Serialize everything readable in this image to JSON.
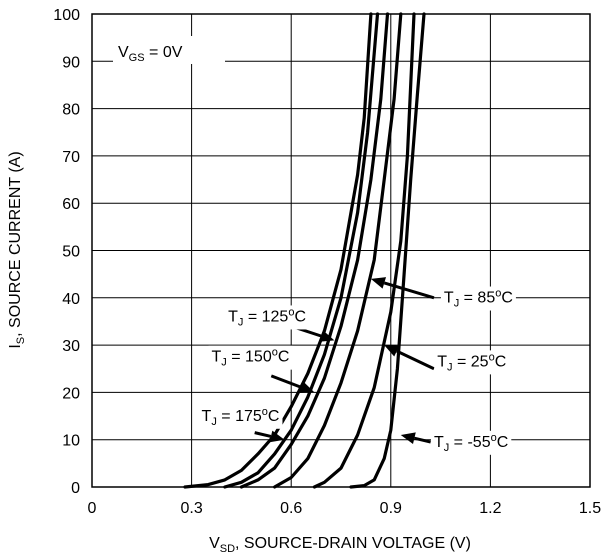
{
  "chart_data": {
    "type": "line",
    "title": "",
    "xlabel": {
      "main": "V",
      "sub": "SD",
      "rest": ", SOURCE-DRAIN VOLTAGE (V)"
    },
    "ylabel": {
      "main": "I",
      "sub": "S",
      "rest": ", SOURCE CURRENT (A)"
    },
    "xlim": [
      0,
      1.5
    ],
    "ylim": [
      0,
      100
    ],
    "x_ticks": [
      "0",
      "0.3",
      "0.6",
      "0.9",
      "1.2",
      "1.5"
    ],
    "y_ticks": [
      "0",
      "10",
      "20",
      "30",
      "40",
      "50",
      "60",
      "70",
      "80",
      "90",
      "100"
    ],
    "x_tick_values": [
      0,
      0.3,
      0.6,
      0.9,
      1.2,
      1.5
    ],
    "y_tick_values": [
      0,
      10,
      20,
      30,
      40,
      50,
      60,
      70,
      80,
      90,
      100
    ],
    "grid": true,
    "condition": {
      "main": "V",
      "sub": "GS",
      "rest": " = 0V"
    },
    "series": [
      {
        "name": "T_J = 175°C",
        "label": {
          "main": "T",
          "sub": "J",
          "mid": " = 175",
          "sup": "o",
          "end": "C"
        },
        "points": [
          [
            0.28,
            0
          ],
          [
            0.35,
            0.5
          ],
          [
            0.4,
            1.5
          ],
          [
            0.45,
            3.5
          ],
          [
            0.5,
            7
          ],
          [
            0.55,
            11
          ],
          [
            0.6,
            17
          ],
          [
            0.65,
            24
          ],
          [
            0.7,
            33
          ],
          [
            0.75,
            46
          ],
          [
            0.8,
            66
          ],
          [
            0.82,
            78
          ],
          [
            0.84,
            100
          ]
        ]
      },
      {
        "name": "T_J = 150°C",
        "label": {
          "main": "T",
          "sub": "J",
          "mid": " = 150",
          "sup": "o",
          "end": "C"
        },
        "points": [
          [
            0.4,
            0
          ],
          [
            0.45,
            1
          ],
          [
            0.5,
            3
          ],
          [
            0.55,
            7
          ],
          [
            0.6,
            12
          ],
          [
            0.65,
            19
          ],
          [
            0.7,
            28
          ],
          [
            0.75,
            40
          ],
          [
            0.8,
            58
          ],
          [
            0.83,
            75
          ],
          [
            0.86,
            100
          ]
        ]
      },
      {
        "name": "T_J = 125°C",
        "label": {
          "main": "T",
          "sub": "J",
          "mid": " = 125",
          "sup": "o",
          "end": "C"
        },
        "points": [
          [
            0.45,
            0
          ],
          [
            0.5,
            1.5
          ],
          [
            0.55,
            4
          ],
          [
            0.6,
            9
          ],
          [
            0.65,
            15
          ],
          [
            0.7,
            23
          ],
          [
            0.75,
            34
          ],
          [
            0.8,
            48
          ],
          [
            0.84,
            65
          ],
          [
            0.87,
            82
          ],
          [
            0.89,
            100
          ]
        ]
      },
      {
        "name": "T_J = 85°C",
        "label": {
          "main": "T",
          "sub": "J",
          "mid": " = 85",
          "sup": "o",
          "end": "C"
        },
        "points": [
          [
            0.55,
            0
          ],
          [
            0.6,
            2
          ],
          [
            0.65,
            6
          ],
          [
            0.7,
            13
          ],
          [
            0.75,
            22
          ],
          [
            0.8,
            33
          ],
          [
            0.85,
            48
          ],
          [
            0.88,
            65
          ],
          [
            0.91,
            82
          ],
          [
            0.93,
            100
          ]
        ]
      },
      {
        "name": "T_J = 25°C",
        "label": {
          "main": "T",
          "sub": "J",
          "mid": " = 25",
          "sup": "o",
          "end": "C"
        },
        "points": [
          [
            0.67,
            0
          ],
          [
            0.7,
            1
          ],
          [
            0.75,
            4
          ],
          [
            0.8,
            11
          ],
          [
            0.85,
            21
          ],
          [
            0.9,
            37
          ],
          [
            0.93,
            52
          ],
          [
            0.95,
            70
          ],
          [
            0.96,
            85
          ],
          [
            0.97,
            100
          ]
        ]
      },
      {
        "name": "T_J = -55°C",
        "label": {
          "main": "T",
          "sub": "J",
          "mid": " = -55",
          "sup": "o",
          "end": "C"
        },
        "points": [
          [
            0.78,
            0
          ],
          [
            0.82,
            0.3
          ],
          [
            0.85,
            1.5
          ],
          [
            0.88,
            6
          ],
          [
            0.9,
            12
          ],
          [
            0.92,
            25
          ],
          [
            0.94,
            45
          ],
          [
            0.96,
            65
          ],
          [
            0.98,
            83
          ],
          [
            1.0,
            100
          ]
        ]
      }
    ],
    "annotations": [
      {
        "series": 0,
        "text_at": [
          0.33,
          14
        ],
        "arrow_from": [
          0.49,
          11.5
        ],
        "arrow_to": [
          0.58,
          10
        ]
      },
      {
        "series": 1,
        "text_at": [
          0.36,
          26.5
        ],
        "arrow_from": [
          0.54,
          23.5
        ],
        "arrow_to": [
          0.67,
          20
        ]
      },
      {
        "series": 2,
        "text_at": [
          0.41,
          35
        ],
        "arrow_from": [
          0.6,
          34
        ],
        "arrow_to": [
          0.73,
          31
        ]
      },
      {
        "series": 3,
        "text_at": [
          1.06,
          39
        ],
        "arrow_from": [
          1.03,
          40
        ],
        "arrow_to": [
          0.84,
          44
        ]
      },
      {
        "series": 4,
        "text_at": [
          1.04,
          25.5
        ],
        "arrow_from": [
          1.03,
          25
        ],
        "arrow_to": [
          0.88,
          30
        ]
      },
      {
        "series": 5,
        "text_at": [
          1.03,
          8.5
        ],
        "arrow_from": [
          1.02,
          9.5
        ],
        "arrow_to": [
          0.93,
          11
        ]
      }
    ]
  }
}
